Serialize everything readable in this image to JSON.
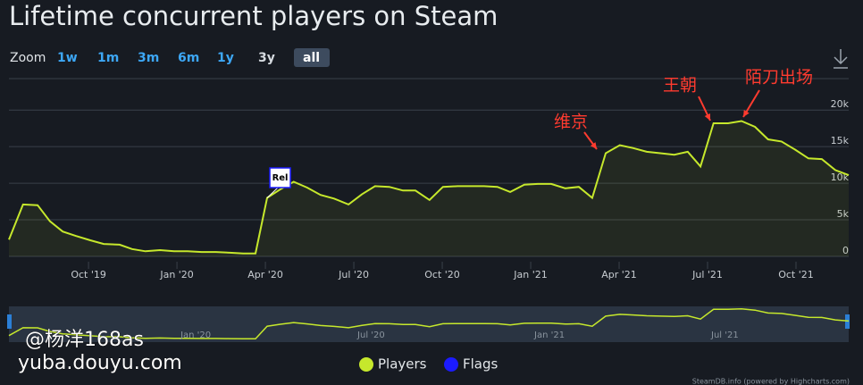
{
  "chart_data": {
    "type": "area",
    "title": "Lifetime concurrent players on Steam",
    "zoom_label": "Zoom",
    "zoom_buttons": [
      "1w",
      "1m",
      "3m",
      "6m",
      "1y",
      "3y",
      "all"
    ],
    "series": [
      {
        "name": "Players",
        "color": "#c6e82c",
        "x": [
          2019.525,
          2019.565,
          2019.606,
          2019.641,
          2019.677,
          2019.714,
          2019.755,
          2019.793,
          2019.838,
          2019.873,
          2019.911,
          2019.952,
          2019.992,
          2020.03,
          2020.07,
          2020.11,
          2020.149,
          2020.187,
          2020.222,
          2020.255,
          2020.29,
          2020.33,
          2020.368,
          2020.406,
          2020.444,
          2020.485,
          2020.523,
          2020.56,
          2020.6,
          2020.639,
          2020.674,
          2020.714,
          2020.752,
          2020.793,
          2020.83,
          2020.868,
          2020.906,
          2020.942,
          2020.982,
          2021.02,
          2021.058,
          2021.098,
          2021.136,
          2021.174,
          2021.212,
          2021.252,
          2021.29,
          2021.328,
          2021.366,
          2021.406,
          2021.444,
          2021.48,
          2021.517,
          2021.558,
          2021.596,
          2021.634,
          2021.671,
          2021.709,
          2021.747,
          2021.785,
          2021.823,
          2021.861,
          2021.899
        ],
        "values": [
          2300,
          7100,
          7000,
          4800,
          3400,
          2800,
          2200,
          1700,
          1600,
          1000,
          700,
          850,
          700,
          700,
          600,
          600,
          500,
          400,
          400,
          8000,
          9100,
          10200,
          9400,
          8400,
          7900,
          7100,
          8500,
          9600,
          9500,
          9000,
          9000,
          7700,
          9500,
          9600,
          9600,
          9600,
          9500,
          8800,
          9800,
          9900,
          9900,
          9300,
          9500,
          8000,
          14100,
          15200,
          14800,
          14300,
          14100,
          13900,
          14300,
          12300,
          18200,
          18200,
          18500,
          17700,
          16000,
          15700,
          14600,
          13400,
          13300,
          11800,
          11100
        ]
      }
    ],
    "flags": {
      "name": "Flags",
      "color": "#1b1bff",
      "items": [
        {
          "x": 2020.255,
          "title": "Rel"
        }
      ]
    },
    "xlim": [
      2019.525,
      2021.899
    ],
    "xticks": [
      {
        "value": 2019.75,
        "label": "Oct '19"
      },
      {
        "value": 2020.0,
        "label": "Jan '20"
      },
      {
        "value": 2020.25,
        "label": "Apr '20"
      },
      {
        "value": 2020.5,
        "label": "Jul '20"
      },
      {
        "value": 2020.75,
        "label": "Oct '20"
      },
      {
        "value": 2021.0,
        "label": "Jan '21"
      },
      {
        "value": 2021.25,
        "label": "Apr '21"
      },
      {
        "value": 2021.5,
        "label": "Jul '21"
      },
      {
        "value": 2021.75,
        "label": "Oct '21"
      }
    ],
    "ylim": [
      0,
      24300
    ],
    "yticks": [
      0,
      {
        "value": 5000,
        "label": "5k"
      },
      {
        "value": 10000,
        "label": "10k"
      },
      {
        "value": 15000,
        "label": "15k"
      },
      {
        "value": 20000,
        "label": "20k"
      }
    ],
    "navigator_xticks": [
      {
        "value": 2020.0,
        "label": "Jan '20"
      },
      {
        "value": 2020.5,
        "label": "Jul '20"
      },
      {
        "value": 2021.0,
        "label": "Jan '21"
      },
      {
        "value": 2021.5,
        "label": "Jul '21"
      }
    ],
    "annotations": [
      {
        "text": "维京",
        "color": "#ff3b2f"
      },
      {
        "text": "王朝",
        "color": "#ff3b2f"
      },
      {
        "text": "陌刀出场",
        "color": "#ff3b2f"
      }
    ],
    "watermark": [
      "@杨洋168as",
      "yuba.douyu.com"
    ],
    "credit": "SteamDB.info (powered by Highcharts.com)",
    "grid": true
  }
}
